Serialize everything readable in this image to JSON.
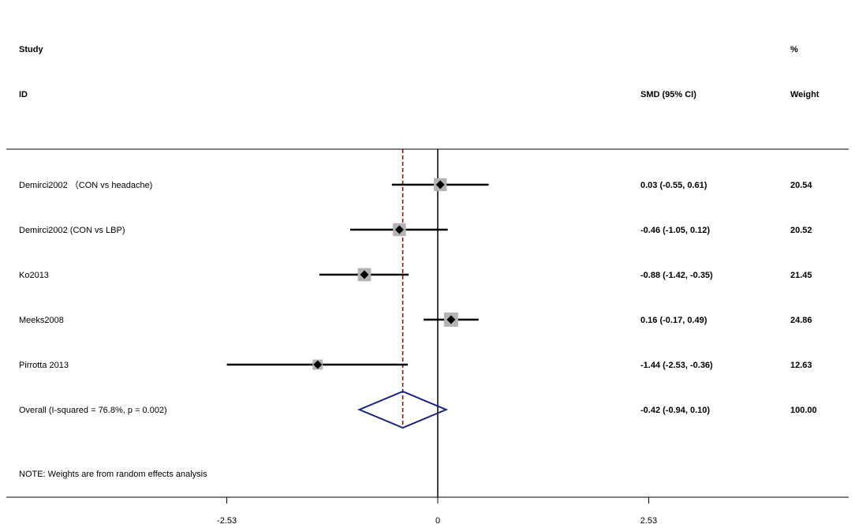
{
  "headers": {
    "study_line1": "Study",
    "study_line2": "ID",
    "smd": "SMD (95% CI)",
    "weight_line1": "%",
    "weight_line2": "Weight"
  },
  "note": "NOTE: Weights are from random effects analysis",
  "chart_data": {
    "type": "forest",
    "title": "",
    "xlabel": "",
    "ylabel": "",
    "xlim": [
      -2.53,
      2.53
    ],
    "xticks": [
      {
        "value": -2.53,
        "label": "-2.53"
      },
      {
        "value": 0,
        "label": "0"
      },
      {
        "value": 2.53,
        "label": "2.53"
      }
    ],
    "null_line": 0,
    "overall_line": -0.42,
    "studies": [
      {
        "label": "Demirci2002 （CON vs headache)",
        "smd": 0.03,
        "lower": -0.55,
        "upper": 0.61,
        "ci_text": "0.03 (-0.55, 0.61)",
        "weight": 20.54,
        "weight_text": "20.54"
      },
      {
        "label": "Demirci2002 (CON vs LBP)",
        "smd": -0.46,
        "lower": -1.05,
        "upper": 0.12,
        "ci_text": "-0.46 (-1.05, 0.12)",
        "weight": 20.52,
        "weight_text": "20.52"
      },
      {
        "label": "Ko2013",
        "smd": -0.88,
        "lower": -1.42,
        "upper": -0.35,
        "ci_text": "-0.88 (-1.42, -0.35)",
        "weight": 21.45,
        "weight_text": "21.45"
      },
      {
        "label": "Meeks2008",
        "smd": 0.16,
        "lower": -0.17,
        "upper": 0.49,
        "ci_text": "0.16 (-0.17, 0.49)",
        "weight": 24.86,
        "weight_text": "24.86"
      },
      {
        "label": "Pirrotta 2013",
        "smd": -1.44,
        "lower": -2.53,
        "upper": -0.36,
        "ci_text": "-1.44 (-2.53, -0.36)",
        "weight": 12.63,
        "weight_text": "12.63"
      }
    ],
    "overall": {
      "label": "Overall  (I-squared = 76.8%, p = 0.002)",
      "smd": -0.42,
      "lower": -0.94,
      "upper": 0.1,
      "ci_text": "-0.42 (-0.94, 0.10)",
      "weight_text": "100.00"
    },
    "colors": {
      "box": "#b3b3b3",
      "diamond": "#1a237e",
      "overall_line": "#8b0000",
      "line": "#000000"
    }
  }
}
